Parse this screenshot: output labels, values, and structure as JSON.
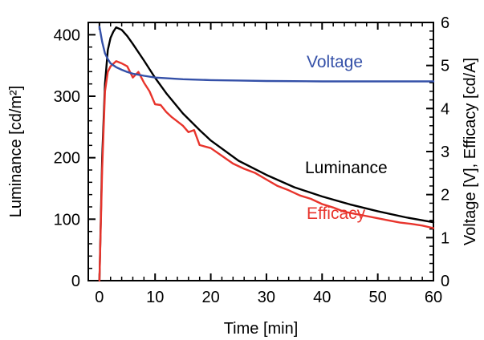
{
  "chart_data": {
    "type": "line",
    "xlabel": "Time [min]",
    "ylabel_left": "Luminance [cd/m²]",
    "ylabel_right": "Voltage [V], Efficacy [cd/A]",
    "xlim": [
      -2,
      60
    ],
    "ylim_left": [
      0,
      420
    ],
    "ylim_right": [
      0,
      6
    ],
    "x_ticks": [
      "0",
      "10",
      "20",
      "30",
      "40",
      "50",
      "60"
    ],
    "y_left_ticks": [
      "0",
      "100",
      "200",
      "300",
      "400"
    ],
    "y_right_ticks": [
      "0",
      "1",
      "2",
      "3",
      "4",
      "5",
      "6"
    ],
    "grid": false,
    "series": [
      {
        "name": "Luminance",
        "axis": "left",
        "color": "#000000",
        "x": [
          0,
          0.5,
          1,
          1.5,
          2,
          2.5,
          3,
          4,
          5,
          6,
          8,
          10,
          12,
          15,
          18,
          20,
          25,
          30,
          35,
          40,
          45,
          50,
          55,
          60
        ],
        "y": [
          0,
          200,
          320,
          375,
          395,
          405,
          412,
          408,
          398,
          385,
          358,
          330,
          305,
          272,
          245,
          228,
          195,
          172,
          152,
          137,
          124,
          113,
          103,
          95
        ]
      },
      {
        "name": "Efficacy",
        "axis": "right",
        "color": "#e8342c",
        "x": [
          0,
          0.5,
          1,
          1.5,
          2,
          3,
          4,
          5,
          6,
          7,
          8,
          9,
          10,
          11,
          12,
          13,
          14,
          15,
          16,
          17,
          18,
          20,
          22,
          24,
          26,
          28,
          30,
          32,
          34,
          36,
          38,
          40,
          42,
          44,
          46,
          48,
          50,
          52,
          54,
          56,
          58,
          60
        ],
        "y": [
          0,
          2.6,
          4.4,
          4.85,
          4.98,
          5.1,
          5.05,
          4.98,
          4.72,
          4.85,
          4.6,
          4.4,
          4.1,
          4.08,
          3.92,
          3.8,
          3.7,
          3.6,
          3.45,
          3.5,
          3.15,
          3.08,
          2.9,
          2.72,
          2.6,
          2.5,
          2.35,
          2.2,
          2.1,
          1.98,
          1.9,
          1.78,
          1.7,
          1.6,
          1.55,
          1.5,
          1.45,
          1.4,
          1.35,
          1.32,
          1.28,
          1.22
        ]
      },
      {
        "name": "Voltage",
        "axis": "right",
        "color": "#3450a8",
        "x": [
          0,
          0.5,
          1,
          1.5,
          2,
          3,
          4,
          5,
          6,
          8,
          10,
          15,
          20,
          25,
          30,
          40,
          50,
          60
        ],
        "y": [
          5.9,
          5.55,
          5.28,
          5.15,
          5.05,
          4.96,
          4.9,
          4.85,
          4.81,
          4.76,
          4.72,
          4.68,
          4.66,
          4.65,
          4.64,
          4.63,
          4.63,
          4.63
        ]
      }
    ]
  }
}
